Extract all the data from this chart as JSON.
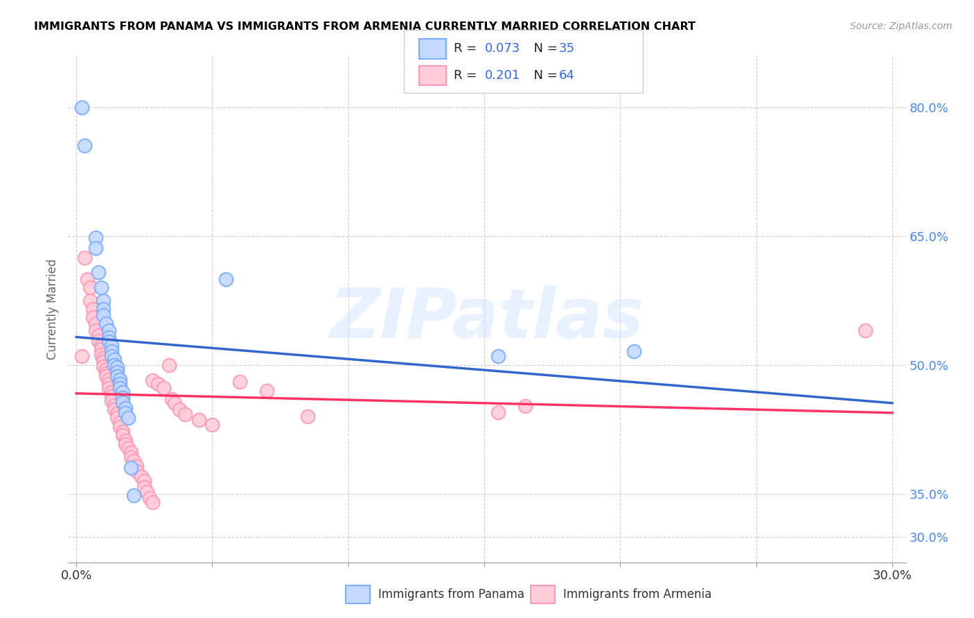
{
  "title": "IMMIGRANTS FROM PANAMA VS IMMIGRANTS FROM ARMENIA CURRENTLY MARRIED CORRELATION CHART",
  "source": "Source: ZipAtlas.com",
  "ylabel": "Currently Married",
  "ylabel_right_ticks": [
    "30.0%",
    "35.0%",
    "50.0%",
    "65.0%",
    "80.0%"
  ],
  "ylabel_right_vals": [
    0.3,
    0.35,
    0.5,
    0.65,
    0.8
  ],
  "watermark": "ZIPatlas",
  "panama_color": "#7aadff",
  "panama_color_fill": "#c5d9ff",
  "armenia_color": "#ff99bb",
  "armenia_color_fill": "#ffccd8",
  "trend_panama_color": "#3366cc",
  "trend_armenia_color": "#ff3366",
  "panama_scatter": [
    [
      0.002,
      0.8
    ],
    [
      0.003,
      0.755
    ],
    [
      0.007,
      0.648
    ],
    [
      0.007,
      0.636
    ],
    [
      0.008,
      0.608
    ],
    [
      0.009,
      0.59
    ],
    [
      0.01,
      0.575
    ],
    [
      0.01,
      0.565
    ],
    [
      0.01,
      0.558
    ],
    [
      0.011,
      0.548
    ],
    [
      0.012,
      0.54
    ],
    [
      0.012,
      0.532
    ],
    [
      0.012,
      0.527
    ],
    [
      0.013,
      0.522
    ],
    [
      0.013,
      0.516
    ],
    [
      0.013,
      0.51
    ],
    [
      0.014,
      0.506
    ],
    [
      0.014,
      0.5
    ],
    [
      0.015,
      0.497
    ],
    [
      0.015,
      0.492
    ],
    [
      0.015,
      0.487
    ],
    [
      0.016,
      0.483
    ],
    [
      0.016,
      0.478
    ],
    [
      0.016,
      0.473
    ],
    [
      0.017,
      0.468
    ],
    [
      0.017,
      0.462
    ],
    [
      0.017,
      0.456
    ],
    [
      0.018,
      0.45
    ],
    [
      0.018,
      0.444
    ],
    [
      0.019,
      0.438
    ],
    [
      0.02,
      0.38
    ],
    [
      0.021,
      0.348
    ],
    [
      0.055,
      0.6
    ],
    [
      0.155,
      0.51
    ],
    [
      0.205,
      0.516
    ]
  ],
  "armenia_scatter": [
    [
      0.002,
      0.51
    ],
    [
      0.003,
      0.625
    ],
    [
      0.004,
      0.6
    ],
    [
      0.005,
      0.59
    ],
    [
      0.005,
      0.575
    ],
    [
      0.006,
      0.565
    ],
    [
      0.006,
      0.555
    ],
    [
      0.007,
      0.548
    ],
    [
      0.007,
      0.54
    ],
    [
      0.008,
      0.534
    ],
    [
      0.008,
      0.528
    ],
    [
      0.009,
      0.522
    ],
    [
      0.009,
      0.518
    ],
    [
      0.009,
      0.512
    ],
    [
      0.01,
      0.508
    ],
    [
      0.01,
      0.504
    ],
    [
      0.01,
      0.498
    ],
    [
      0.011,
      0.495
    ],
    [
      0.011,
      0.49
    ],
    [
      0.011,
      0.487
    ],
    [
      0.012,
      0.483
    ],
    [
      0.012,
      0.478
    ],
    [
      0.012,
      0.473
    ],
    [
      0.013,
      0.468
    ],
    [
      0.013,
      0.463
    ],
    [
      0.013,
      0.458
    ],
    [
      0.014,
      0.453
    ],
    [
      0.014,
      0.448
    ],
    [
      0.015,
      0.443
    ],
    [
      0.015,
      0.438
    ],
    [
      0.016,
      0.433
    ],
    [
      0.016,
      0.428
    ],
    [
      0.017,
      0.422
    ],
    [
      0.017,
      0.418
    ],
    [
      0.018,
      0.412
    ],
    [
      0.018,
      0.408
    ],
    [
      0.019,
      0.403
    ],
    [
      0.02,
      0.398
    ],
    [
      0.02,
      0.392
    ],
    [
      0.021,
      0.388
    ],
    [
      0.022,
      0.382
    ],
    [
      0.022,
      0.376
    ],
    [
      0.024,
      0.37
    ],
    [
      0.025,
      0.365
    ],
    [
      0.025,
      0.358
    ],
    [
      0.026,
      0.352
    ],
    [
      0.027,
      0.345
    ],
    [
      0.028,
      0.34
    ],
    [
      0.028,
      0.482
    ],
    [
      0.03,
      0.478
    ],
    [
      0.032,
      0.473
    ],
    [
      0.034,
      0.5
    ],
    [
      0.035,
      0.46
    ],
    [
      0.036,
      0.455
    ],
    [
      0.038,
      0.448
    ],
    [
      0.04,
      0.442
    ],
    [
      0.045,
      0.436
    ],
    [
      0.05,
      0.43
    ],
    [
      0.06,
      0.48
    ],
    [
      0.07,
      0.47
    ],
    [
      0.085,
      0.44
    ],
    [
      0.155,
      0.445
    ],
    [
      0.165,
      0.452
    ],
    [
      0.29,
      0.54
    ]
  ],
  "xmin": -0.003,
  "xmax": 0.305,
  "ymin": 0.27,
  "ymax": 0.86,
  "xticks": [
    0.0,
    0.05,
    0.1,
    0.15,
    0.2,
    0.25,
    0.3
  ],
  "xtick_labels": [
    "0.0%",
    "",
    "",
    "",
    "",
    "",
    "30.0%"
  ]
}
